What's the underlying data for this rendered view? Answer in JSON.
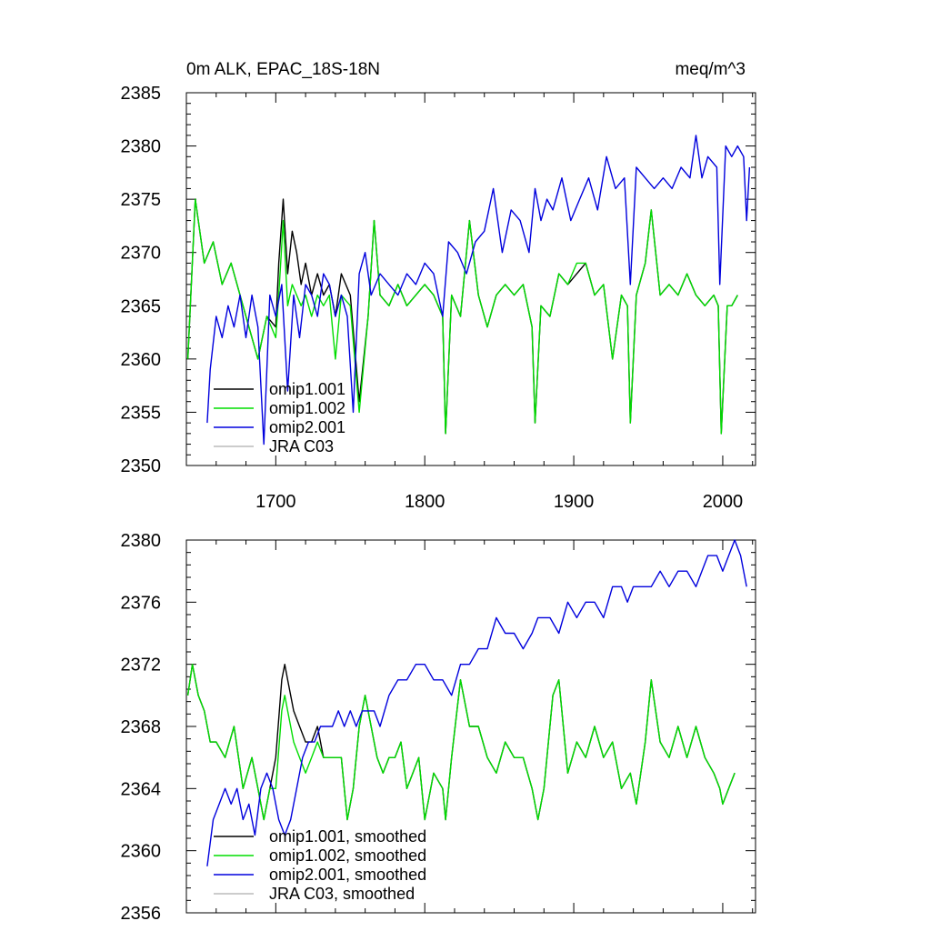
{
  "chart_data": [
    {
      "type": "line",
      "title_left": "0m ALK, EPAC_18S-18N",
      "title_right": "meq/m^3",
      "xlabel": "",
      "ylabel": "",
      "xlim": [
        1640,
        2022
      ],
      "ylim": [
        2350,
        2385
      ],
      "x_ticks": [
        1700,
        1800,
        1900,
        2000
      ],
      "x_tick_labels": [
        "1700",
        "1800",
        "1900",
        "2000"
      ],
      "y_ticks": [
        2350,
        2355,
        2360,
        2365,
        2370,
        2375,
        2380,
        2385
      ],
      "y_tick_labels": [
        "2350",
        "2355",
        "2360",
        "2365",
        "2370",
        "2375",
        "2380",
        "2385"
      ],
      "legend_position": "bottom-left",
      "series": [
        {
          "name": "omip1.001",
          "color": "#000000",
          "x": [
            1641,
            1646,
            1652,
            1658,
            1664,
            1670,
            1676,
            1682,
            1688,
            1694,
            1700,
            1702,
            1705,
            1708,
            1711,
            1714,
            1717,
            1720,
            1724,
            1728,
            1732,
            1736,
            1740,
            1744,
            1750,
            1756,
            1762,
            1766,
            1770,
            1776,
            1782,
            1788,
            1794,
            1800,
            1806,
            1812,
            1814,
            1818,
            1824,
            1830,
            1836,
            1842,
            1848,
            1854,
            1860,
            1866,
            1872,
            1874,
            1878,
            1884,
            1890,
            1896,
            1902,
            1908,
            1914,
            1920,
            1926,
            1932,
            1936,
            1938,
            1942,
            1948,
            1952,
            1958,
            1964,
            1970,
            1976,
            1982,
            1988,
            1994,
            1997,
            1999,
            2003,
            2006,
            2010
          ],
          "values": [
            2360,
            2375,
            2369,
            2371,
            2367,
            2369,
            2366,
            2363,
            2360,
            2364,
            2363,
            2369,
            2375,
            2368,
            2372,
            2370,
            2367,
            2369,
            2366,
            2368,
            2366,
            2367,
            2364,
            2368,
            2366,
            2356,
            2364,
            2373,
            2366,
            2365,
            2367,
            2365,
            2366,
            2367,
            2366,
            2364,
            2353,
            2366,
            2364,
            2373,
            2366,
            2363,
            2366,
            2367,
            2366,
            2367,
            2363,
            2354,
            2365,
            2364,
            2368,
            2367,
            2368,
            2369,
            2366,
            2367,
            2360,
            2366,
            2365,
            2354,
            2366,
            2369,
            2374,
            2366,
            2367,
            2366,
            2368,
            2366,
            2365,
            2366,
            2365,
            2353,
            2365,
            2365,
            2366
          ]
        },
        {
          "name": "omip1.002",
          "color": "#00dd00",
          "x": [
            1641,
            1646,
            1652,
            1658,
            1664,
            1670,
            1676,
            1682,
            1688,
            1694,
            1700,
            1702,
            1705,
            1708,
            1711,
            1714,
            1717,
            1720,
            1724,
            1728,
            1732,
            1736,
            1740,
            1744,
            1750,
            1756,
            1762,
            1766,
            1770,
            1776,
            1782,
            1788,
            1794,
            1800,
            1806,
            1812,
            1814,
            1818,
            1824,
            1830,
            1836,
            1842,
            1848,
            1854,
            1860,
            1866,
            1872,
            1874,
            1878,
            1884,
            1890,
            1896,
            1902,
            1908,
            1914,
            1920,
            1926,
            1932,
            1936,
            1938,
            1942,
            1948,
            1952,
            1958,
            1964,
            1970,
            1976,
            1982,
            1988,
            1994,
            1997,
            1999,
            2003,
            2006,
            2010
          ],
          "values": [
            2360,
            2375,
            2369,
            2371,
            2367,
            2369,
            2366,
            2363,
            2360,
            2364,
            2362,
            2366,
            2373,
            2365,
            2367,
            2366,
            2365,
            2366,
            2364,
            2366,
            2365,
            2366,
            2360,
            2366,
            2365,
            2355,
            2364,
            2373,
            2366,
            2365,
            2367,
            2365,
            2366,
            2367,
            2366,
            2364,
            2353,
            2366,
            2364,
            2373,
            2366,
            2363,
            2366,
            2367,
            2366,
            2367,
            2363,
            2354,
            2365,
            2364,
            2368,
            2367,
            2369,
            2369,
            2366,
            2367,
            2360,
            2366,
            2365,
            2354,
            2366,
            2369,
            2374,
            2366,
            2367,
            2366,
            2368,
            2366,
            2365,
            2366,
            2365,
            2353,
            2365,
            2365,
            2366
          ]
        },
        {
          "name": "omip2.001",
          "color": "#0000dd",
          "x": [
            1654,
            1656,
            1660,
            1664,
            1668,
            1672,
            1676,
            1680,
            1684,
            1688,
            1692,
            1696,
            1700,
            1704,
            1708,
            1712,
            1716,
            1720,
            1724,
            1728,
            1732,
            1736,
            1740,
            1744,
            1748,
            1752,
            1756,
            1760,
            1764,
            1770,
            1776,
            1782,
            1788,
            1794,
            1800,
            1806,
            1812,
            1816,
            1822,
            1828,
            1834,
            1840,
            1846,
            1852,
            1858,
            1864,
            1870,
            1874,
            1878,
            1882,
            1886,
            1892,
            1898,
            1904,
            1910,
            1916,
            1922,
            1928,
            1934,
            1938,
            1942,
            1948,
            1954,
            1960,
            1966,
            1972,
            1978,
            1982,
            1986,
            1990,
            1996,
            1998,
            2002,
            2006,
            2010,
            2014,
            2016,
            2018
          ],
          "values": [
            2354,
            2359,
            2364,
            2362,
            2365,
            2363,
            2366,
            2362,
            2366,
            2363,
            2352,
            2366,
            2364,
            2367,
            2357,
            2366,
            2362,
            2367,
            2366,
            2364,
            2368,
            2367,
            2364,
            2366,
            2364,
            2355,
            2368,
            2370,
            2366,
            2368,
            2367,
            2366,
            2368,
            2367,
            2369,
            2368,
            2364,
            2371,
            2370,
            2368,
            2371,
            2372,
            2376,
            2370,
            2374,
            2373,
            2370,
            2376,
            2373,
            2375,
            2374,
            2377,
            2373,
            2375,
            2377,
            2374,
            2379,
            2376,
            2377,
            2367,
            2378,
            2377,
            2376,
            2377,
            2376,
            2378,
            2377,
            2381,
            2377,
            2379,
            2378,
            2367,
            2380,
            2379,
            2380,
            2379,
            2373,
            2378
          ]
        },
        {
          "name": "JRA C03",
          "color": "#bbbbbb",
          "x": [],
          "values": []
        }
      ]
    },
    {
      "type": "line",
      "title_left": "",
      "title_right": "",
      "xlabel": "",
      "ylabel": "",
      "xlim": [
        1640,
        2022
      ],
      "ylim": [
        2356,
        2380
      ],
      "x_ticks": [
        1700,
        1800,
        1900,
        2000
      ],
      "y_ticks": [
        2356,
        2360,
        2364,
        2368,
        2372,
        2376,
        2380
      ],
      "y_tick_labels": [
        "2356",
        "2360",
        "2364",
        "2368",
        "2372",
        "2376",
        "2380"
      ],
      "legend_position": "bottom-left",
      "series": [
        {
          "name": "omip1.001, smoothed",
          "color": "#000000",
          "x": [
            1641,
            1644,
            1648,
            1652,
            1656,
            1660,
            1666,
            1672,
            1678,
            1684,
            1688,
            1692,
            1696,
            1700,
            1704,
            1706,
            1708,
            1712,
            1716,
            1720,
            1724,
            1728,
            1732,
            1736,
            1740,
            1744,
            1748,
            1752,
            1756,
            1760,
            1764,
            1768,
            1772,
            1776,
            1780,
            1784,
            1788,
            1792,
            1796,
            1800,
            1806,
            1812,
            1814,
            1818,
            1824,
            1830,
            1836,
            1842,
            1848,
            1854,
            1860,
            1866,
            1872,
            1876,
            1880,
            1886,
            1890,
            1896,
            1902,
            1908,
            1914,
            1920,
            1926,
            1932,
            1938,
            1942,
            1948,
            1952,
            1958,
            1964,
            1970,
            1976,
            1982,
            1988,
            1994,
            1998,
            2000,
            2004,
            2008
          ],
          "values": [
            2370,
            2372,
            2370,
            2369,
            2367,
            2367,
            2366,
            2368,
            2364,
            2366,
            2364,
            2362,
            2364,
            2366,
            2371,
            2372,
            2371,
            2369,
            2368,
            2367,
            2367,
            2368,
            2366,
            2366,
            2366,
            2366,
            2362,
            2364,
            2368,
            2370,
            2368,
            2366,
            2365,
            2366,
            2366,
            2367,
            2364,
            2365,
            2366,
            2362,
            2365,
            2364,
            2362,
            2366,
            2371,
            2368,
            2368,
            2366,
            2365,
            2367,
            2366,
            2366,
            2364,
            2362,
            2364,
            2370,
            2371,
            2365,
            2367,
            2366,
            2368,
            2366,
            2367,
            2364,
            2365,
            2363,
            2367,
            2371,
            2367,
            2366,
            2368,
            2366,
            2368,
            2366,
            2365,
            2364,
            2363,
            2364,
            2365
          ]
        },
        {
          "name": "omip1.002, smoothed",
          "color": "#00dd00",
          "x": [
            1641,
            1644,
            1648,
            1652,
            1656,
            1660,
            1666,
            1672,
            1678,
            1684,
            1688,
            1692,
            1696,
            1700,
            1704,
            1706,
            1708,
            1712,
            1716,
            1720,
            1724,
            1728,
            1732,
            1736,
            1740,
            1744,
            1748,
            1752,
            1756,
            1760,
            1764,
            1768,
            1772,
            1776,
            1780,
            1784,
            1788,
            1792,
            1796,
            1800,
            1806,
            1812,
            1814,
            1818,
            1824,
            1830,
            1836,
            1842,
            1848,
            1854,
            1860,
            1866,
            1872,
            1876,
            1880,
            1886,
            1890,
            1896,
            1902,
            1908,
            1914,
            1920,
            1926,
            1932,
            1938,
            1942,
            1948,
            1952,
            1958,
            1964,
            1970,
            1976,
            1982,
            1988,
            1994,
            1998,
            2000,
            2004,
            2008
          ],
          "values": [
            2370,
            2372,
            2370,
            2369,
            2367,
            2367,
            2366,
            2368,
            2364,
            2366,
            2364,
            2362,
            2364,
            2364,
            2369,
            2370,
            2369,
            2367,
            2366,
            2365,
            2366,
            2367,
            2366,
            2366,
            2366,
            2366,
            2362,
            2364,
            2368,
            2370,
            2368,
            2366,
            2365,
            2366,
            2366,
            2367,
            2364,
            2365,
            2366,
            2362,
            2365,
            2364,
            2362,
            2366,
            2371,
            2368,
            2368,
            2366,
            2365,
            2367,
            2366,
            2366,
            2364,
            2362,
            2364,
            2370,
            2371,
            2365,
            2367,
            2366,
            2368,
            2366,
            2367,
            2364,
            2365,
            2363,
            2367,
            2371,
            2367,
            2366,
            2368,
            2366,
            2368,
            2366,
            2365,
            2364,
            2363,
            2364,
            2365
          ]
        },
        {
          "name": "omip2.001, smoothed",
          "color": "#0000dd",
          "x": [
            1654,
            1658,
            1662,
            1666,
            1670,
            1674,
            1678,
            1682,
            1686,
            1690,
            1694,
            1698,
            1702,
            1706,
            1710,
            1714,
            1718,
            1722,
            1726,
            1730,
            1734,
            1738,
            1742,
            1746,
            1750,
            1754,
            1758,
            1762,
            1766,
            1770,
            1776,
            1782,
            1788,
            1794,
            1800,
            1806,
            1812,
            1818,
            1824,
            1830,
            1836,
            1842,
            1848,
            1854,
            1860,
            1866,
            1872,
            1876,
            1880,
            1884,
            1890,
            1896,
            1902,
            1908,
            1914,
            1920,
            1926,
            1932,
            1936,
            1940,
            1946,
            1952,
            1958,
            1964,
            1970,
            1976,
            1982,
            1986,
            1990,
            1996,
            2000,
            2004,
            2008,
            2012,
            2016
          ],
          "values": [
            2359,
            2362,
            2363,
            2364,
            2363,
            2364,
            2362,
            2363,
            2361,
            2364,
            2365,
            2364,
            2362,
            2361,
            2362,
            2364,
            2366,
            2367,
            2367,
            2368,
            2368,
            2368,
            2369,
            2368,
            2369,
            2368,
            2369,
            2369,
            2369,
            2368,
            2370,
            2371,
            2371,
            2372,
            2372,
            2371,
            2371,
            2370,
            2372,
            2372,
            2373,
            2373,
            2375,
            2374,
            2374,
            2373,
            2374,
            2375,
            2375,
            2375,
            2374,
            2376,
            2375,
            2376,
            2376,
            2375,
            2377,
            2377,
            2376,
            2377,
            2377,
            2377,
            2378,
            2377,
            2378,
            2378,
            2377,
            2378,
            2379,
            2379,
            2378,
            2379,
            2380,
            2379,
            2377
          ]
        },
        {
          "name": "JRA C03, smoothed",
          "color": "#bbbbbb",
          "x": [],
          "values": []
        }
      ]
    }
  ]
}
